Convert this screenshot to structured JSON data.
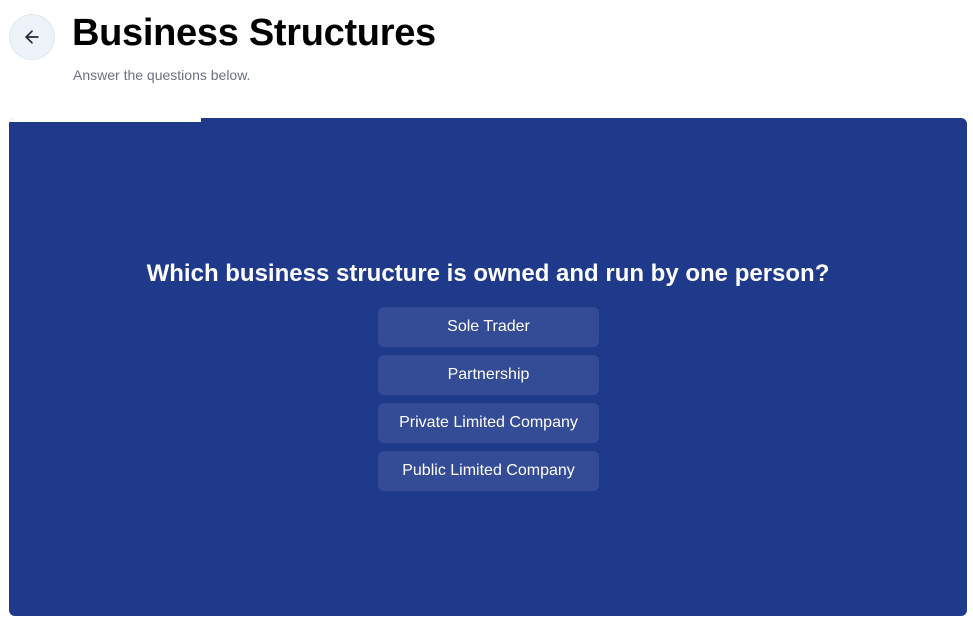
{
  "header": {
    "back_icon": "arrow-left-icon",
    "title": "Business Structures",
    "subtitle": "Answer the questions below."
  },
  "quiz": {
    "progress": 0.2,
    "question": "Which business structure is owned and run by one person?",
    "options": [
      {
        "label": "Sole Trader"
      },
      {
        "label": "Partnership"
      },
      {
        "label": "Private Limited Company"
      },
      {
        "label": "Public Limited Company"
      }
    ]
  },
  "colors": {
    "card_background": "#1f3a8a",
    "option_background": "#344c96",
    "back_button_background": "#eef2f9"
  }
}
